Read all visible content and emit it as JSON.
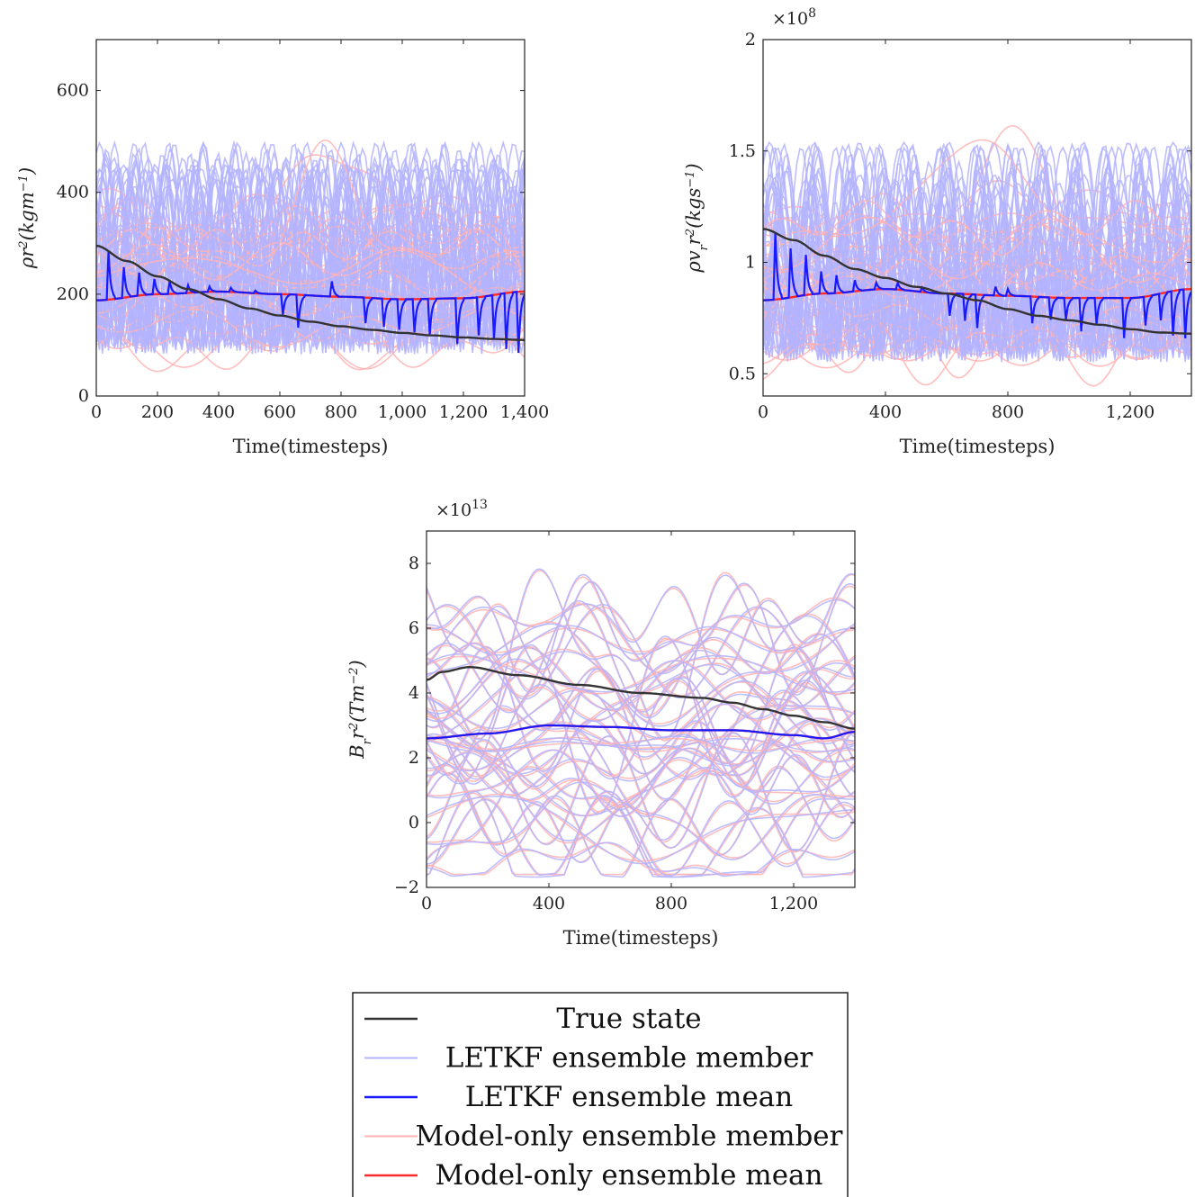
{
  "legend": {
    "entries": [
      {
        "label": "True state",
        "color": "#333333",
        "width": 2.5
      },
      {
        "label": "LETKF ensemble member",
        "color": "#b3b3ff",
        "width": 2
      },
      {
        "label": "LETKF ensemble mean",
        "color": "#1a1aff",
        "width": 2.5
      },
      {
        "label": "Model-only ensemble member",
        "color": "#ffb3b3",
        "width": 2
      },
      {
        "label": "Model-only ensemble mean",
        "color": "#ff2a2a",
        "width": 2.5
      }
    ]
  },
  "chart_data": [
    {
      "type": "line",
      "xlabel": "Time(timesteps)",
      "ylabel_html": "ρr²(kgm⁻¹)",
      "ylabel_parts": [
        {
          "t": "ρr"
        },
        {
          "t": "2",
          "sup": true
        },
        {
          "t": "(kgm"
        },
        {
          "t": "−1",
          "sup": true
        },
        {
          "t": ")"
        }
      ],
      "exponent": "",
      "xlim": [
        0,
        1400
      ],
      "ylim": [
        0,
        700
      ],
      "xticks": [
        0,
        200,
        400,
        600,
        800,
        1000,
        1200,
        1400
      ],
      "xtick_labels": [
        "0",
        "200",
        "400",
        "600",
        "800",
        "1,000",
        "1,200",
        "1,400"
      ],
      "yticks": [
        0,
        200,
        400,
        600
      ],
      "ytick_labels": [
        "0",
        "200",
        "400",
        "600"
      ],
      "true_state": {
        "x": [
          0,
          100,
          200,
          300,
          400,
          500,
          600,
          700,
          800,
          900,
          1000,
          1100,
          1200,
          1300,
          1400
        ],
        "y": [
          295,
          265,
          235,
          210,
          190,
          172,
          158,
          146,
          137,
          130,
          124,
          119,
          115,
          112,
          110
        ]
      },
      "model_mean": {
        "x": [
          0,
          200,
          400,
          600,
          800,
          1000,
          1200,
          1400
        ],
        "y": [
          188,
          200,
          205,
          200,
          195,
          190,
          192,
          205
        ]
      },
      "letkf_mean": {
        "base": [
          188,
          200,
          205,
          200,
          195,
          190,
          192,
          205
        ],
        "spike_t": [
          40,
          90,
          140,
          190,
          240,
          300,
          370,
          440,
          520,
          610,
          660,
          770,
          880,
          940,
          990,
          1040,
          1090,
          1180,
          1250,
          1300,
          1340,
          1380
        ],
        "spike_h": [
          95,
          60,
          45,
          30,
          25,
          15,
          10,
          8,
          5,
          -40,
          -65,
          30,
          -50,
          -55,
          -60,
          -65,
          -70,
          -90,
          -75,
          -85,
          -110,
          -120
        ]
      },
      "ensemble": {
        "count": 40,
        "seed": 3,
        "mode": "density"
      }
    },
    {
      "type": "line",
      "xlabel": "Time(timesteps)",
      "ylabel_parts": [
        {
          "t": "ρv"
        },
        {
          "t": "r",
          "sub": true
        },
        {
          "t": "r"
        },
        {
          "t": "2",
          "sup": true
        },
        {
          "t": "(kgs"
        },
        {
          "t": "−1",
          "sup": true
        },
        {
          "t": ")"
        }
      ],
      "exponent": "×10⁸",
      "exponent_base": "×10",
      "exponent_power": "8",
      "xlim": [
        0,
        1400
      ],
      "ylim": [
        0.4,
        2.0
      ],
      "xticks": [
        0,
        400,
        800,
        1200
      ],
      "xtick_labels": [
        "0",
        "400",
        "800",
        "1,200"
      ],
      "yticks": [
        0.5,
        1,
        1.5,
        2
      ],
      "ytick_labels": [
        "0.5",
        "1",
        "1.5",
        "2"
      ],
      "true_state": {
        "x": [
          0,
          100,
          200,
          300,
          400,
          500,
          600,
          700,
          800,
          900,
          1000,
          1100,
          1200,
          1300,
          1400
        ],
        "y": [
          1.15,
          1.1,
          1.03,
          0.97,
          0.93,
          0.89,
          0.86,
          0.83,
          0.79,
          0.76,
          0.74,
          0.72,
          0.7,
          0.685,
          0.68
        ]
      },
      "model_mean": {
        "x": [
          0,
          200,
          400,
          600,
          800,
          1000,
          1200,
          1400
        ],
        "y": [
          0.83,
          0.86,
          0.88,
          0.86,
          0.85,
          0.84,
          0.84,
          0.88
        ]
      },
      "letkf_mean": {
        "base": [
          0.83,
          0.86,
          0.88,
          0.86,
          0.85,
          0.84,
          0.84,
          0.88
        ],
        "spike_t": [
          40,
          90,
          140,
          190,
          240,
          300,
          370,
          440,
          520,
          610,
          660,
          700,
          760,
          800,
          880,
          940,
          990,
          1040,
          1090,
          1180,
          1250,
          1300,
          1340,
          1380
        ],
        "spike_h": [
          0.3,
          0.22,
          0.18,
          0.1,
          0.08,
          0.05,
          0.03,
          0.03,
          0.02,
          -0.1,
          -0.12,
          -0.15,
          0.04,
          0.03,
          -0.12,
          -0.1,
          -0.1,
          -0.15,
          -0.12,
          -0.18,
          -0.13,
          -0.12,
          -0.2,
          -0.22
        ]
      },
      "ensemble": {
        "count": 40,
        "seed": 11,
        "mode": "velocity"
      }
    },
    {
      "type": "line",
      "xlabel": "Time(timesteps)",
      "ylabel_parts": [
        {
          "t": "B"
        },
        {
          "t": "r",
          "sub": true
        },
        {
          "t": "r"
        },
        {
          "t": "2",
          "sup": true
        },
        {
          "t": "(Tm"
        },
        {
          "t": "−2",
          "sup": true
        },
        {
          "t": ")"
        }
      ],
      "exponent": "×10¹³",
      "exponent_base": "×10",
      "exponent_power": "13",
      "xlim": [
        0,
        1400
      ],
      "ylim": [
        -2,
        9
      ],
      "xticks": [
        0,
        400,
        800,
        1200
      ],
      "xtick_labels": [
        "0",
        "400",
        "800",
        "1,200"
      ],
      "yticks": [
        -2,
        0,
        2,
        4,
        6,
        8
      ],
      "ytick_labels": [
        "−2",
        "0",
        "2",
        "4",
        "6",
        "8"
      ],
      "true_state": {
        "x": [
          0,
          50,
          140,
          300,
          500,
          700,
          900,
          1000,
          1100,
          1200,
          1300,
          1400
        ],
        "y": [
          4.4,
          4.65,
          4.8,
          4.55,
          4.25,
          4.0,
          3.85,
          3.7,
          3.5,
          3.3,
          3.1,
          2.9
        ]
      },
      "model_mean": {
        "x": [
          0,
          200,
          400,
          600,
          800,
          1000,
          1200,
          1300,
          1400
        ],
        "y": [
          2.6,
          2.75,
          3.0,
          2.95,
          2.85,
          2.85,
          2.7,
          2.6,
          2.8
        ]
      },
      "letkf_mean": {
        "base": [
          2.6,
          2.75,
          3.0,
          2.95,
          2.85,
          2.85,
          2.7,
          2.6,
          2.8
        ],
        "spike_t": [],
        "spike_h": []
      },
      "ensemble": {
        "count": 38,
        "seed": 21,
        "mode": "field"
      }
    }
  ]
}
